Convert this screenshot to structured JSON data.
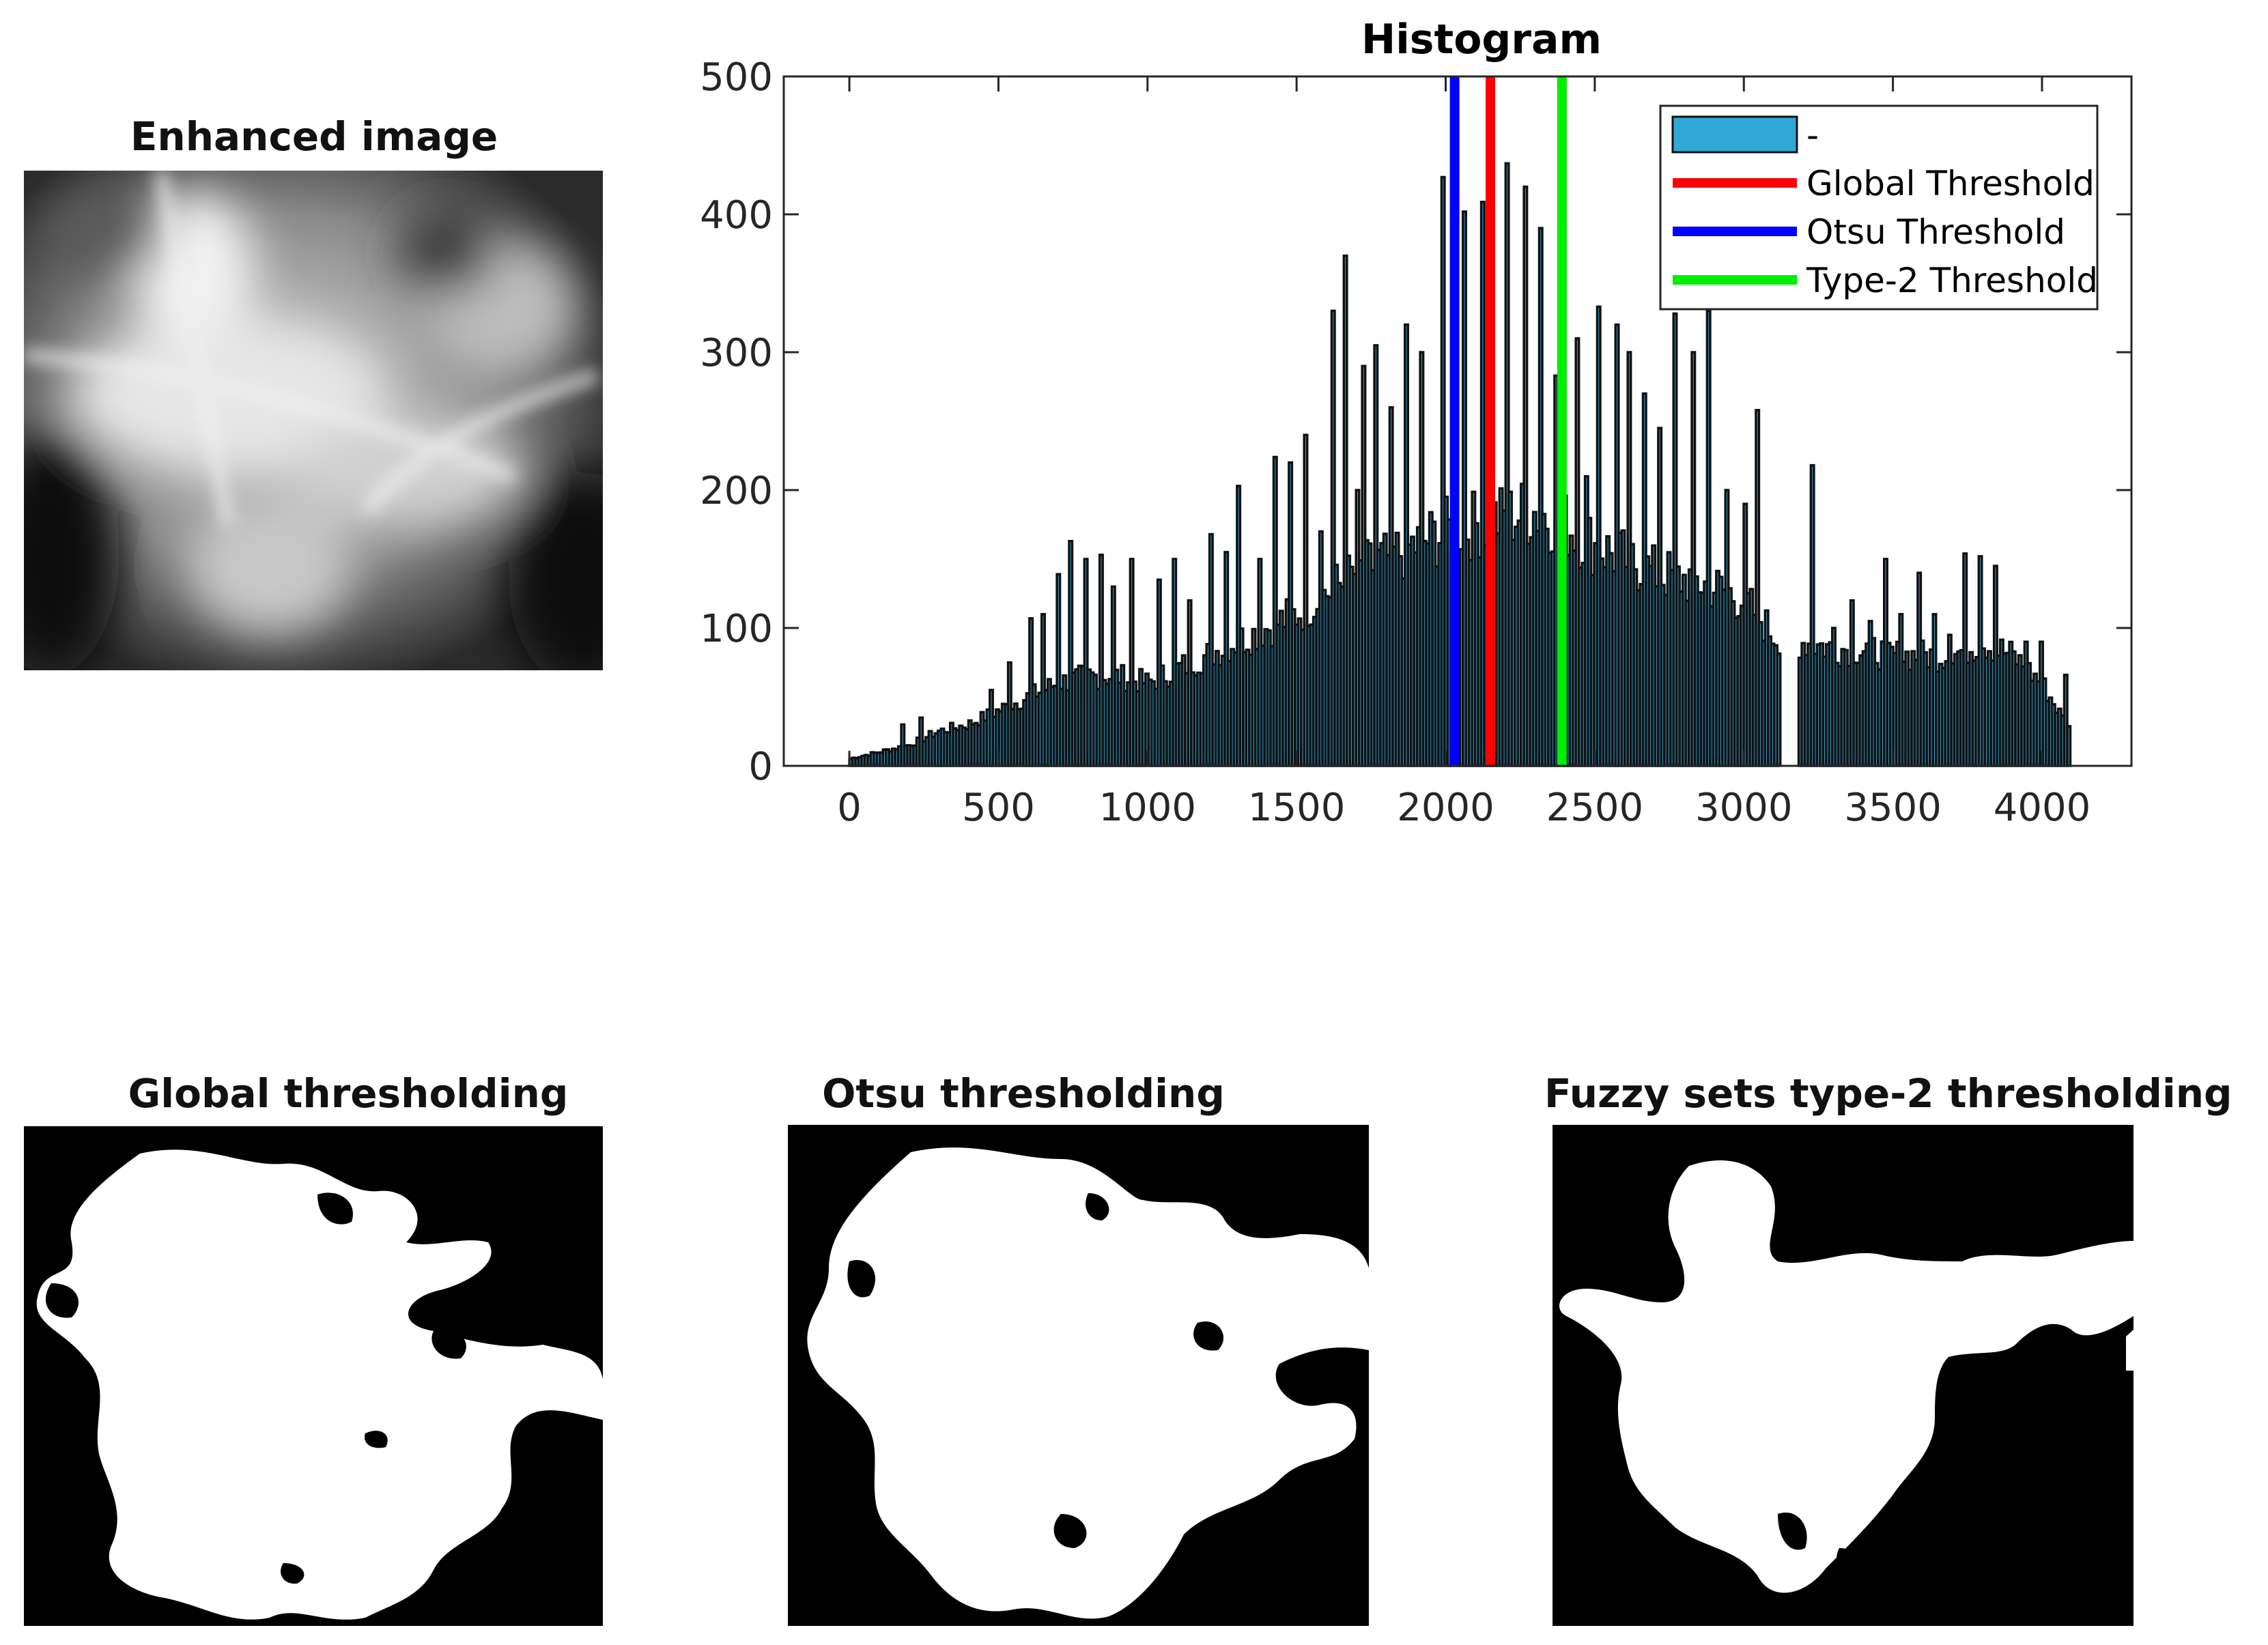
{
  "panels": {
    "enhanced": {
      "title": "Enhanced image"
    },
    "global": {
      "title": "Global thresholding"
    },
    "otsu": {
      "title": "Otsu thresholding"
    },
    "type2": {
      "title": "Fuzzy sets type-2 thresholding"
    }
  },
  "chart_data": {
    "type": "bar",
    "title": "Histogram",
    "xlabel": "",
    "ylabel": "",
    "xlim": [
      -220,
      4300
    ],
    "ylim": [
      0,
      500
    ],
    "xticks": [
      0,
      500,
      1000,
      1500,
      2000,
      2500,
      3000,
      3500,
      4000
    ],
    "yticks": [
      0,
      100,
      200,
      300,
      400,
      500
    ],
    "grid": false,
    "legend_position": "top-right",
    "bar_color": "#2fa8d8",
    "bar_edge_color": "#111111",
    "bins": {
      "x_start": 0,
      "x_end": 4095,
      "count": 400,
      "anchors": [
        [
          0,
          5
        ],
        [
          100,
          10
        ],
        [
          200,
          15
        ],
        [
          300,
          25
        ],
        [
          400,
          30
        ],
        [
          500,
          40
        ],
        [
          600,
          50
        ],
        [
          700,
          60
        ],
        [
          800,
          65
        ],
        [
          900,
          65
        ],
        [
          1000,
          60
        ],
        [
          1100,
          70
        ],
        [
          1200,
          80
        ],
        [
          1300,
          90
        ],
        [
          1400,
          100
        ],
        [
          1500,
          110
        ],
        [
          1600,
          125
        ],
        [
          1700,
          140
        ],
        [
          1800,
          150
        ],
        [
          1900,
          160
        ],
        [
          2000,
          170
        ],
        [
          2100,
          175
        ],
        [
          2200,
          180
        ],
        [
          2300,
          185
        ],
        [
          2400,
          175
        ],
        [
          2500,
          160
        ],
        [
          2600,
          150
        ],
        [
          2700,
          140
        ],
        [
          2800,
          135
        ],
        [
          2900,
          130
        ],
        [
          3000,
          120
        ],
        [
          3100,
          95
        ],
        [
          3200,
          90
        ],
        [
          3300,
          85
        ],
        [
          3400,
          85
        ],
        [
          3500,
          80
        ],
        [
          3600,
          80
        ],
        [
          3700,
          80
        ],
        [
          3800,
          90
        ],
        [
          3900,
          80
        ],
        [
          4000,
          60
        ],
        [
          4095,
          25
        ]
      ],
      "gaps": [
        [
          3120,
          3180
        ]
      ],
      "spikes": [
        [
          180,
          30
        ],
        [
          240,
          35
        ],
        [
          480,
          55
        ],
        [
          540,
          75
        ],
        [
          610,
          107
        ],
        [
          650,
          110
        ],
        [
          700,
          139
        ],
        [
          740,
          163
        ],
        [
          790,
          150
        ],
        [
          840,
          153
        ],
        [
          890,
          130
        ],
        [
          950,
          150
        ],
        [
          1040,
          135
        ],
        [
          1090,
          150
        ],
        [
          1140,
          120
        ],
        [
          1210,
          168
        ],
        [
          1260,
          155
        ],
        [
          1310,
          203
        ],
        [
          1380,
          150
        ],
        [
          1430,
          224
        ],
        [
          1480,
          220
        ],
        [
          1530,
          240
        ],
        [
          1580,
          170
        ],
        [
          1620,
          330
        ],
        [
          1660,
          370
        ],
        [
          1700,
          200
        ],
        [
          1720,
          290
        ],
        [
          1770,
          305
        ],
        [
          1820,
          260
        ],
        [
          1870,
          320
        ],
        [
          1920,
          300
        ],
        [
          1990,
          427
        ],
        [
          2060,
          402
        ],
        [
          2120,
          409
        ],
        [
          2210,
          437
        ],
        [
          2270,
          420
        ],
        [
          2320,
          390
        ],
        [
          2370,
          283
        ],
        [
          2440,
          310
        ],
        [
          2470,
          210
        ],
        [
          2510,
          333
        ],
        [
          2570,
          320
        ],
        [
          2620,
          300
        ],
        [
          2670,
          270
        ],
        [
          2720,
          245
        ],
        [
          2770,
          328
        ],
        [
          2830,
          300
        ],
        [
          2880,
          330
        ],
        [
          2940,
          200
        ],
        [
          3000,
          190
        ],
        [
          3050,
          258
        ],
        [
          3230,
          218
        ],
        [
          3300,
          100
        ],
        [
          3360,
          120
        ],
        [
          3420,
          105
        ],
        [
          3480,
          150
        ],
        [
          3530,
          110
        ],
        [
          3590,
          140
        ],
        [
          3640,
          110
        ],
        [
          3690,
          95
        ],
        [
          3740,
          154
        ],
        [
          3790,
          152
        ],
        [
          3840,
          145
        ],
        [
          3950,
          90
        ],
        [
          4000,
          90
        ],
        [
          4080,
          66
        ]
      ]
    },
    "series": [
      {
        "name": "-",
        "kind": "bar",
        "color": "#2fa8d8"
      },
      {
        "name": "Global Threshold",
        "kind": "vline",
        "x": 2150,
        "color": "#ff0000"
      },
      {
        "name": "Otsu Threshold",
        "kind": "vline",
        "x": 2030,
        "color": "#0000ff"
      },
      {
        "name": "Type-2 Threshold",
        "kind": "vline",
        "x": 2390,
        "color": "#00ee00"
      }
    ]
  }
}
